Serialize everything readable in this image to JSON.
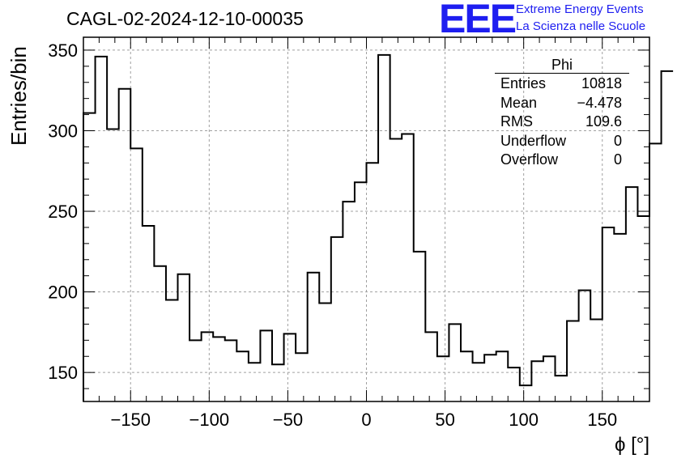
{
  "logo": {
    "mark": "EEE",
    "line1": "Extreme Energy Events",
    "line2": "La Scienza nelle Scuole",
    "color": "#1e1ef0"
  },
  "stats": {
    "title": "Phi",
    "rows": [
      {
        "label": "Entries",
        "value": "10818"
      },
      {
        "label": "Mean",
        "value": "−4.478"
      },
      {
        "label": "RMS",
        "value": "109.6"
      },
      {
        "label": "Underflow",
        "value": "0"
      },
      {
        "label": "Overflow",
        "value": "0"
      }
    ]
  },
  "chart_data": {
    "type": "bar",
    "style": "step-histogram",
    "title": "CAGL-02-2024-12-10-00035",
    "xlabel": "ϕ [°]",
    "ylabel": "Entries/bin",
    "xlim": [
      -180,
      180
    ],
    "ylim": [
      132,
      358
    ],
    "bin_width": 7.5,
    "xticks": [
      -150,
      -100,
      -50,
      0,
      50,
      100,
      150
    ],
    "xtick_labels": [
      "−150",
      "−100",
      "−50",
      "0",
      "50",
      "100",
      "150"
    ],
    "yticks": [
      150,
      200,
      250,
      300,
      350
    ],
    "ytick_labels": [
      "150",
      "200",
      "250",
      "300",
      "350"
    ],
    "grid": true,
    "bin_edges_start": -180,
    "values": [
      311,
      346,
      301,
      326,
      289,
      241,
      216,
      195,
      211,
      170,
      175,
      172,
      170,
      163,
      156,
      176,
      155,
      174,
      162,
      212,
      193,
      234,
      256,
      268,
      280,
      347,
      295,
      298,
      225,
      175,
      160,
      180,
      163,
      156,
      161,
      163,
      153,
      142,
      157,
      160,
      148,
      182,
      201,
      183,
      240,
      236,
      265,
      247,
      292,
      337
    ],
    "line_color": "#000000",
    "grid_color": "#a0a0a0"
  }
}
